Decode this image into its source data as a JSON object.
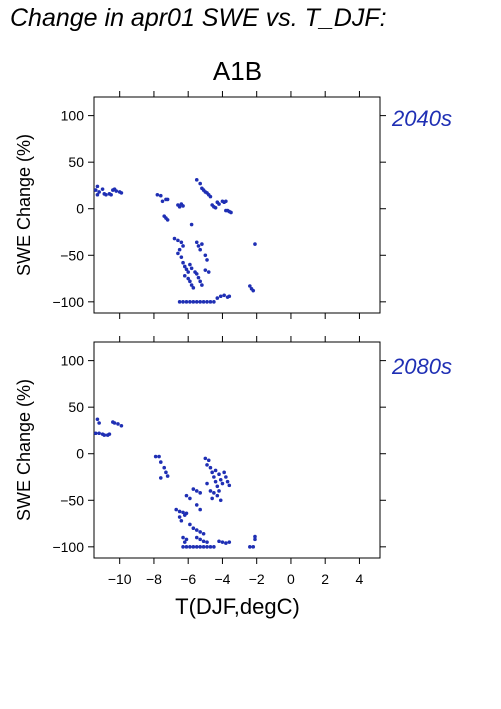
{
  "page_title": "Change in apr01 SWE vs. T_DJF:",
  "scenario": "A1B",
  "chart_data": {
    "type": "scatter",
    "xlabel": "T(DJF,degC)",
    "ylabel": "SWE Change (%)",
    "xlim": [
      -11.5,
      5.2
    ],
    "ylim": [
      -112,
      120
    ],
    "xticks": [
      -10,
      -8,
      -6,
      -4,
      -2,
      0,
      2,
      4
    ],
    "yticks": [
      100,
      50,
      0,
      -50,
      -100
    ],
    "xtick_labels": [
      "−10",
      "−8",
      "−6",
      "−4",
      "−2",
      "0",
      "2",
      "4"
    ],
    "ytick_labels": [
      "100",
      "50",
      "0",
      "−50",
      "−100"
    ],
    "grid": false,
    "point_color": "#1f2fb4",
    "panels": [
      {
        "period": "2040s",
        "points": [
          [
            -11.3,
            24
          ],
          [
            -11.4,
            20
          ],
          [
            -11.2,
            18
          ],
          [
            -11.3,
            15
          ],
          [
            -11.0,
            21
          ],
          [
            -10.9,
            16
          ],
          [
            -10.8,
            15
          ],
          [
            -10.6,
            16
          ],
          [
            -10.5,
            15
          ],
          [
            -10.4,
            20
          ],
          [
            -10.3,
            21
          ],
          [
            -10.2,
            19
          ],
          [
            -10.0,
            18
          ],
          [
            -9.9,
            17
          ],
          [
            -7.8,
            15
          ],
          [
            -7.6,
            14
          ],
          [
            -7.5,
            8
          ],
          [
            -7.3,
            10
          ],
          [
            -7.2,
            10
          ],
          [
            -7.4,
            -8
          ],
          [
            -7.3,
            -10
          ],
          [
            -7.2,
            -12
          ],
          [
            -6.6,
            4
          ],
          [
            -6.5,
            2
          ],
          [
            -6.4,
            5
          ],
          [
            -6.3,
            3
          ],
          [
            -5.5,
            31
          ],
          [
            -5.3,
            27
          ],
          [
            -5.2,
            22
          ],
          [
            -5.1,
            20
          ],
          [
            -5.0,
            18
          ],
          [
            -4.9,
            17
          ],
          [
            -4.8,
            15
          ],
          [
            -4.7,
            13
          ],
          [
            -4.6,
            4
          ],
          [
            -4.5,
            2
          ],
          [
            -4.4,
            1
          ],
          [
            -4.3,
            7
          ],
          [
            -4.2,
            5
          ],
          [
            -4.0,
            8
          ],
          [
            -3.9,
            7
          ],
          [
            -3.8,
            8
          ],
          [
            -3.7,
            -2
          ],
          [
            -3.6,
            -3
          ],
          [
            -3.5,
            -4
          ],
          [
            -3.8,
            -2
          ],
          [
            -6.8,
            -32
          ],
          [
            -6.6,
            -34
          ],
          [
            -6.4,
            -36
          ],
          [
            -6.3,
            -40
          ],
          [
            -6.6,
            -48
          ],
          [
            -6.4,
            -52
          ],
          [
            -6.3,
            -58
          ],
          [
            -6.2,
            -62
          ],
          [
            -6.1,
            -65
          ],
          [
            -6.0,
            -68
          ],
          [
            -6.2,
            -72
          ],
          [
            -6.0,
            -75
          ],
          [
            -5.9,
            -78
          ],
          [
            -5.8,
            -82
          ],
          [
            -5.7,
            -85
          ],
          [
            -5.9,
            -60
          ],
          [
            -5.8,
            -64
          ],
          [
            -5.6,
            -68
          ],
          [
            -5.5,
            -70
          ],
          [
            -5.4,
            -74
          ],
          [
            -5.3,
            -78
          ],
          [
            -5.2,
            -82
          ],
          [
            -5.5,
            -36
          ],
          [
            -5.4,
            -40
          ],
          [
            -5.3,
            -44
          ],
          [
            -5.2,
            -38
          ],
          [
            -5.0,
            -50
          ],
          [
            -4.9,
            -55
          ],
          [
            -5.0,
            -66
          ],
          [
            -4.8,
            -68
          ],
          [
            -5.8,
            -17
          ],
          [
            -6.5,
            -44
          ],
          [
            -6.5,
            -100
          ],
          [
            -6.3,
            -100
          ],
          [
            -6.1,
            -100
          ],
          [
            -5.9,
            -100
          ],
          [
            -5.7,
            -100
          ],
          [
            -5.5,
            -100
          ],
          [
            -5.3,
            -100
          ],
          [
            -5.1,
            -100
          ],
          [
            -4.9,
            -100
          ],
          [
            -4.7,
            -100
          ],
          [
            -4.5,
            -100
          ],
          [
            -4.3,
            -96
          ],
          [
            -4.1,
            -94
          ],
          [
            -3.9,
            -93
          ],
          [
            -3.7,
            -95
          ],
          [
            -3.6,
            -94
          ],
          [
            -2.4,
            -83
          ],
          [
            -2.3,
            -86
          ],
          [
            -2.2,
            -88
          ],
          [
            -2.1,
            -38
          ]
        ]
      },
      {
        "period": "2080s",
        "points": [
          [
            -11.3,
            37
          ],
          [
            -11.2,
            33
          ],
          [
            -11.4,
            22
          ],
          [
            -11.2,
            22
          ],
          [
            -11.0,
            21
          ],
          [
            -10.9,
            20
          ],
          [
            -10.7,
            20
          ],
          [
            -10.6,
            21
          ],
          [
            -10.4,
            34
          ],
          [
            -10.3,
            33
          ],
          [
            -10.1,
            32
          ],
          [
            -9.9,
            30
          ],
          [
            -7.9,
            -3
          ],
          [
            -7.7,
            -3
          ],
          [
            -7.6,
            -9
          ],
          [
            -7.4,
            -15
          ],
          [
            -7.3,
            -20
          ],
          [
            -7.2,
            -24
          ],
          [
            -7.6,
            -26
          ],
          [
            -6.7,
            -60
          ],
          [
            -6.5,
            -62
          ],
          [
            -6.3,
            -63
          ],
          [
            -6.1,
            -64
          ],
          [
            -6.5,
            -68
          ],
          [
            -6.4,
            -72
          ],
          [
            -6.2,
            -66
          ],
          [
            -6.1,
            -45
          ],
          [
            -5.9,
            -48
          ],
          [
            -5.7,
            -38
          ],
          [
            -5.5,
            -40
          ],
          [
            -5.3,
            -42
          ],
          [
            -5.5,
            -55
          ],
          [
            -5.3,
            -60
          ],
          [
            -5.9,
            -76
          ],
          [
            -5.7,
            -80
          ],
          [
            -5.5,
            -82
          ],
          [
            -5.3,
            -84
          ],
          [
            -5.1,
            -86
          ],
          [
            -5.5,
            -90
          ],
          [
            -5.3,
            -92
          ],
          [
            -5.1,
            -94
          ],
          [
            -4.9,
            -95
          ],
          [
            -6.3,
            -90
          ],
          [
            -6.1,
            -92
          ],
          [
            -6.2,
            -95
          ],
          [
            -5.0,
            -5
          ],
          [
            -4.8,
            -7
          ],
          [
            -4.9,
            -12
          ],
          [
            -4.7,
            -15
          ],
          [
            -4.6,
            -20
          ],
          [
            -4.5,
            -25
          ],
          [
            -4.4,
            -30
          ],
          [
            -4.3,
            -35
          ],
          [
            -4.2,
            -40
          ],
          [
            -4.4,
            -18
          ],
          [
            -4.2,
            -22
          ],
          [
            -4.1,
            -28
          ],
          [
            -4.0,
            -32
          ],
          [
            -3.9,
            -20
          ],
          [
            -3.8,
            -25
          ],
          [
            -3.7,
            -30
          ],
          [
            -3.6,
            -34
          ],
          [
            -4.5,
            -42
          ],
          [
            -4.3,
            -45
          ],
          [
            -4.1,
            -50
          ],
          [
            -4.9,
            -32
          ],
          [
            -4.7,
            -40
          ],
          [
            -4.6,
            -48
          ],
          [
            -6.3,
            -100
          ],
          [
            -6.1,
            -100
          ],
          [
            -5.9,
            -100
          ],
          [
            -5.7,
            -100
          ],
          [
            -5.5,
            -100
          ],
          [
            -5.3,
            -100
          ],
          [
            -5.1,
            -100
          ],
          [
            -4.9,
            -100
          ],
          [
            -4.7,
            -100
          ],
          [
            -4.5,
            -100
          ],
          [
            -4.2,
            -94
          ],
          [
            -4.0,
            -95
          ],
          [
            -3.8,
            -96
          ],
          [
            -3.6,
            -95
          ],
          [
            -2.4,
            -100
          ],
          [
            -2.2,
            -100
          ],
          [
            -2.1,
            -92
          ],
          [
            -2.1,
            -89
          ]
        ]
      }
    ]
  }
}
